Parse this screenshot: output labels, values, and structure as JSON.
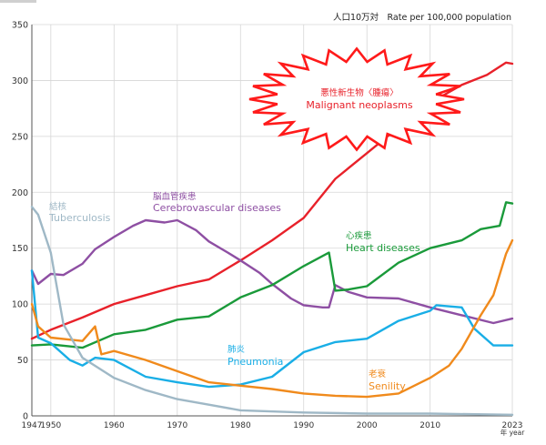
{
  "chart_data": {
    "type": "line",
    "title": "",
    "subtitle": "人口10万対　Rate per 100,000 population",
    "xlabel": "年 year",
    "ylabel": "",
    "xlim": [
      1947,
      2023
    ],
    "ylim": [
      0,
      350
    ],
    "grid": true,
    "xticks": [
      {
        "value": 1947,
        "label": "1947"
      },
      {
        "value": 1950,
        "label": "1950"
      },
      {
        "value": 1960,
        "label": "1960"
      },
      {
        "value": 1970,
        "label": "1970"
      },
      {
        "value": 1980,
        "label": "1980"
      },
      {
        "value": 1990,
        "label": "1990"
      },
      {
        "value": 2000,
        "label": "2000"
      },
      {
        "value": 2010,
        "label": "2010"
      },
      {
        "value": 2023,
        "label": "2023"
      }
    ],
    "yticks": [
      0,
      50,
      100,
      150,
      200,
      250,
      300,
      350
    ],
    "series": [
      {
        "id": "malignant",
        "name_jp": "悪性新生物〈腫瘍〉",
        "name": "Malignant neoplasms",
        "color": "#e8212a",
        "points": [
          [
            1947,
            69
          ],
          [
            1950,
            77
          ],
          [
            1955,
            88
          ],
          [
            1960,
            100
          ],
          [
            1965,
            108
          ],
          [
            1970,
            116
          ],
          [
            1975,
            122
          ],
          [
            1980,
            139
          ],
          [
            1985,
            157
          ],
          [
            1990,
            177
          ],
          [
            1995,
            212
          ],
          [
            2000,
            235
          ],
          [
            2005,
            258
          ],
          [
            2010,
            280
          ],
          [
            2015,
            296
          ],
          [
            2019,
            305
          ],
          [
            2022,
            316
          ],
          [
            2023,
            315
          ]
        ]
      },
      {
        "id": "cerebrovascular",
        "name_jp": "脳血管疾患",
        "name": "Cerebrovascular diseases",
        "color": "#8e4fa3",
        "points": [
          [
            1947,
            130
          ],
          [
            1948,
            118
          ],
          [
            1950,
            127
          ],
          [
            1952,
            126
          ],
          [
            1955,
            136
          ],
          [
            1957,
            149
          ],
          [
            1960,
            160
          ],
          [
            1963,
            170
          ],
          [
            1965,
            175
          ],
          [
            1968,
            173
          ],
          [
            1970,
            175
          ],
          [
            1973,
            166
          ],
          [
            1975,
            156
          ],
          [
            1978,
            146
          ],
          [
            1980,
            139
          ],
          [
            1983,
            128
          ],
          [
            1985,
            118
          ],
          [
            1988,
            105
          ],
          [
            1990,
            99
          ],
          [
            1993,
            97
          ],
          [
            1994,
            97
          ],
          [
            1995,
            117
          ],
          [
            1997,
            111
          ],
          [
            2000,
            106
          ],
          [
            2005,
            105
          ],
          [
            2010,
            97
          ],
          [
            2015,
            90
          ],
          [
            2020,
            83
          ],
          [
            2023,
            87
          ]
        ]
      },
      {
        "id": "heart",
        "name_jp": "心疾患",
        "name": "Heart diseases",
        "color": "#1a9a3a",
        "points": [
          [
            1947,
            63
          ],
          [
            1950,
            64
          ],
          [
            1955,
            61
          ],
          [
            1960,
            73
          ],
          [
            1965,
            77
          ],
          [
            1970,
            86
          ],
          [
            1975,
            89
          ],
          [
            1980,
            106
          ],
          [
            1985,
            117
          ],
          [
            1990,
            134
          ],
          [
            1994,
            146
          ],
          [
            1995,
            112
          ],
          [
            1997,
            113
          ],
          [
            2000,
            116
          ],
          [
            2005,
            137
          ],
          [
            2010,
            150
          ],
          [
            2015,
            157
          ],
          [
            2018,
            167
          ],
          [
            2021,
            170
          ],
          [
            2022,
            191
          ],
          [
            2023,
            190
          ]
        ]
      },
      {
        "id": "pneumonia",
        "name_jp": "肺炎",
        "name": "Pneumonia",
        "color": "#19aee6",
        "points": [
          [
            1947,
            130
          ],
          [
            1948,
            70
          ],
          [
            1950,
            65
          ],
          [
            1953,
            50
          ],
          [
            1955,
            45
          ],
          [
            1957,
            52
          ],
          [
            1960,
            50
          ],
          [
            1965,
            35
          ],
          [
            1970,
            30
          ],
          [
            1975,
            26
          ],
          [
            1980,
            28
          ],
          [
            1985,
            35
          ],
          [
            1990,
            57
          ],
          [
            1995,
            66
          ],
          [
            2000,
            69
          ],
          [
            2005,
            85
          ],
          [
            2010,
            94
          ],
          [
            2011,
            99
          ],
          [
            2015,
            97
          ],
          [
            2017,
            78
          ],
          [
            2020,
            63
          ],
          [
            2023,
            63
          ]
        ]
      },
      {
        "id": "senility",
        "name_jp": "老衰",
        "name": "Senility",
        "color": "#f08a1c",
        "points": [
          [
            1947,
            100
          ],
          [
            1948,
            80
          ],
          [
            1950,
            70
          ],
          [
            1955,
            67
          ],
          [
            1957,
            80
          ],
          [
            1958,
            55
          ],
          [
            1960,
            58
          ],
          [
            1965,
            50
          ],
          [
            1970,
            40
          ],
          [
            1975,
            30
          ],
          [
            1980,
            27
          ],
          [
            1985,
            24
          ],
          [
            1990,
            20
          ],
          [
            1995,
            18
          ],
          [
            2000,
            17
          ],
          [
            2005,
            20
          ],
          [
            2010,
            34
          ],
          [
            2013,
            45
          ],
          [
            2015,
            60
          ],
          [
            2018,
            90
          ],
          [
            2020,
            108
          ],
          [
            2022,
            145
          ],
          [
            2023,
            157
          ]
        ]
      },
      {
        "id": "tuberculosis",
        "name_jp": "結核",
        "name": "Tuberculosis",
        "color": "#9fb8c6",
        "points": [
          [
            1947,
            187
          ],
          [
            1948,
            180
          ],
          [
            1950,
            146
          ],
          [
            1952,
            82
          ],
          [
            1955,
            52
          ],
          [
            1960,
            34
          ],
          [
            1965,
            23
          ],
          [
            1970,
            15
          ],
          [
            1975,
            10
          ],
          [
            1980,
            5
          ],
          [
            1990,
            3
          ],
          [
            2000,
            2
          ],
          [
            2010,
            2
          ],
          [
            2023,
            1
          ]
        ]
      }
    ]
  }
}
